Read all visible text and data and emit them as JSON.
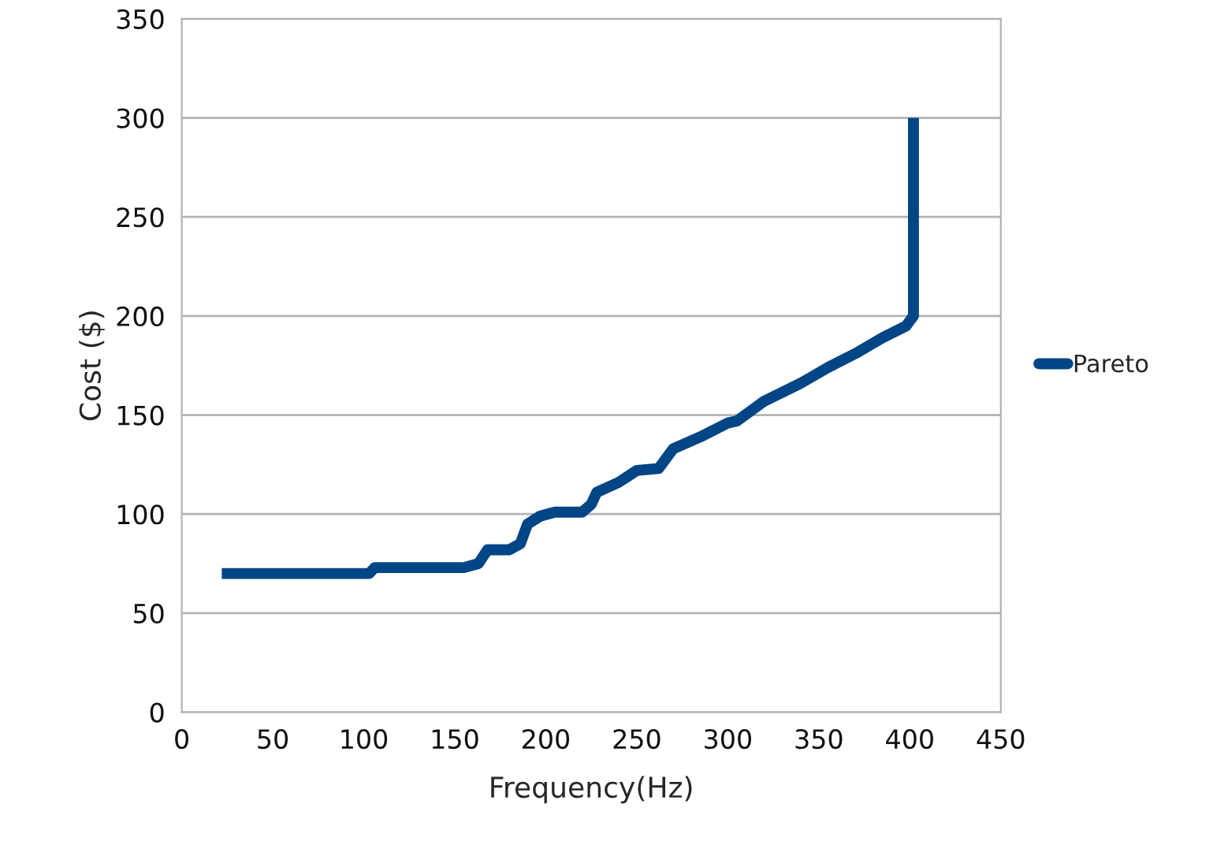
{
  "chart_data": {
    "type": "line",
    "xlabel": "Frequency(Hz)",
    "ylabel": "Cost ($)",
    "xlim": [
      0,
      450
    ],
    "xticks": [
      0,
      50,
      100,
      150,
      200,
      250,
      300,
      350,
      400,
      450
    ],
    "ylim": [
      0,
      350
    ],
    "yticks": [
      0,
      50,
      100,
      150,
      200,
      250,
      300,
      350
    ],
    "grid": "y",
    "legend": "right",
    "marker": "none",
    "line_style": "solid",
    "series": [
      {
        "name": "Pareto",
        "color": "#004586",
        "x": [
          22,
          103,
          106,
          155,
          163,
          168,
          180,
          186,
          190,
          197,
          205,
          220,
          225,
          228,
          240,
          250,
          262,
          270,
          285,
          300,
          305,
          320,
          340,
          355,
          370,
          385,
          398,
          402,
          402
        ],
        "values": [
          70,
          70,
          73,
          73,
          75,
          82,
          82,
          85,
          95,
          99,
          101,
          101,
          105,
          111,
          116,
          122,
          123,
          133,
          139,
          146,
          147,
          157,
          166,
          174,
          181,
          189,
          195,
          200,
          300
        ]
      }
    ]
  }
}
